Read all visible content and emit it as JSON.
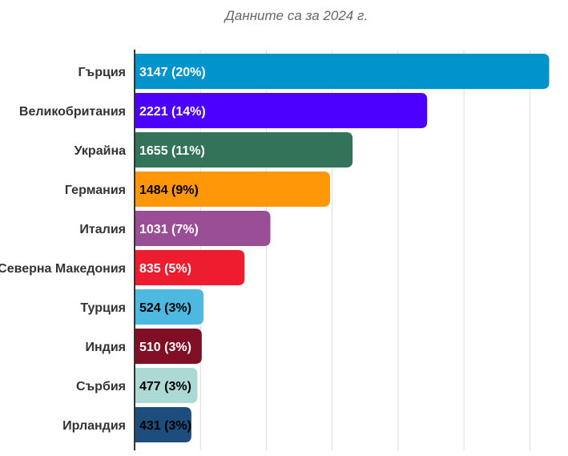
{
  "chart_data": {
    "type": "bar",
    "orientation": "horizontal",
    "subtitle": "Данните са за 2024 г.",
    "categories": [
      "Гърция",
      "Великобритания",
      "Украйна",
      "Германия",
      "Италия",
      "Северна Македония",
      "Турция",
      "Индия",
      "Сърбия",
      "Ирландия"
    ],
    "values": [
      3147,
      2221,
      1655,
      1484,
      1031,
      835,
      524,
      510,
      477,
      431
    ],
    "value_labels": [
      "3147 (20%)",
      "2221 (14%)",
      "1655 (11%)",
      "1484 (9%)",
      "1031 (7%)",
      "835 (5%)",
      "524 (3%)",
      "510 (3%)",
      "477 (3%)",
      "431 (3%)"
    ],
    "colors": [
      "#0093cc",
      "#4b00ff",
      "#33735a",
      "#ff9709",
      "#9a4e96",
      "#ee1c2f",
      "#4db8e0",
      "#800f25",
      "#acd9d3",
      "#1d4d7c"
    ],
    "label_colors": [
      "#ffffff",
      "#ffffff",
      "#ffffff",
      "#000000",
      "#ffffff",
      "#ffffff",
      "#000000",
      "#ffffff",
      "#000000",
      "#000000"
    ],
    "xlim": [
      0,
      3150
    ],
    "grid": true,
    "legend": false
  }
}
